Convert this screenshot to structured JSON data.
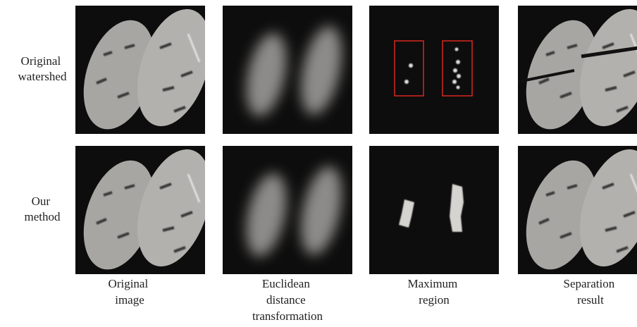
{
  "row_labels": [
    [
      "Original",
      "watershed"
    ],
    [
      "Our",
      "method"
    ]
  ],
  "column_labels": [
    [
      "Original",
      "image"
    ],
    [
      "Euclidean",
      "distance",
      "transformation"
    ],
    [
      "Maximum",
      "region"
    ],
    [
      "Separation",
      "result"
    ]
  ]
}
